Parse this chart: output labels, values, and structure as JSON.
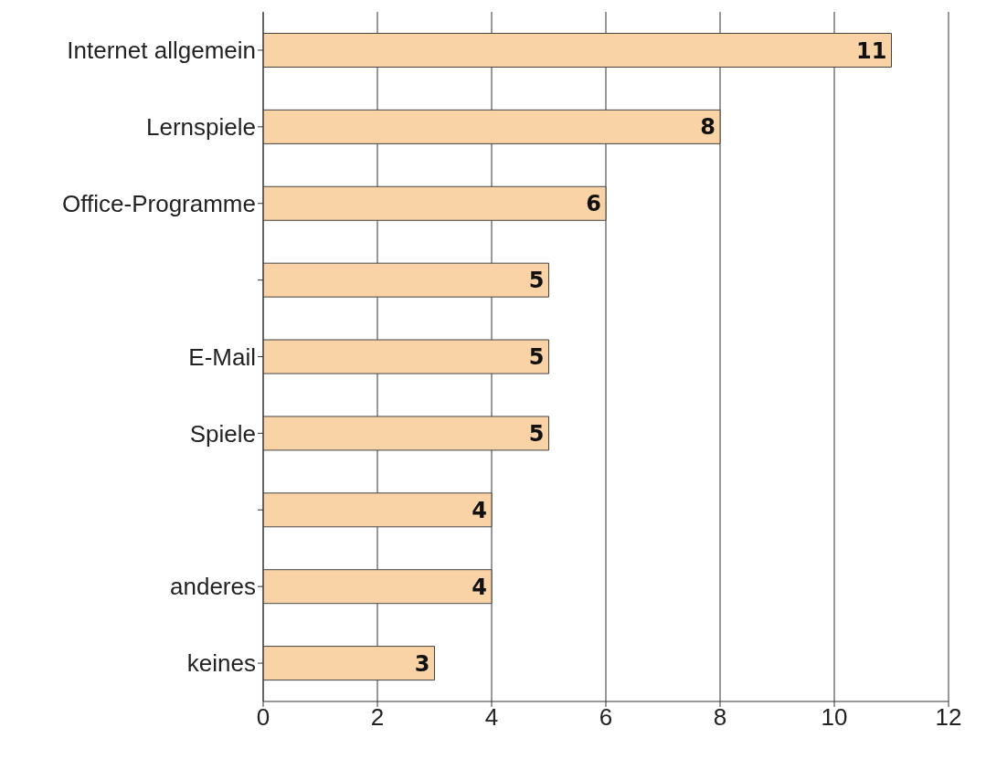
{
  "chart_data": {
    "type": "bar",
    "orientation": "horizontal",
    "categories": [
      "Internet allgemein",
      "Lernspiele",
      "Office-Programme",
      null,
      "E-Mail",
      "Spiele",
      null,
      "anderes",
      "keines"
    ],
    "values": [
      11,
      8,
      6,
      5,
      5,
      5,
      4,
      4,
      3
    ],
    "color": "#f9d3a6",
    "xlim": [
      0,
      12
    ],
    "xticks": [
      0,
      2,
      4,
      6,
      8,
      10,
      12
    ],
    "grid": "x",
    "data_labels": true
  }
}
